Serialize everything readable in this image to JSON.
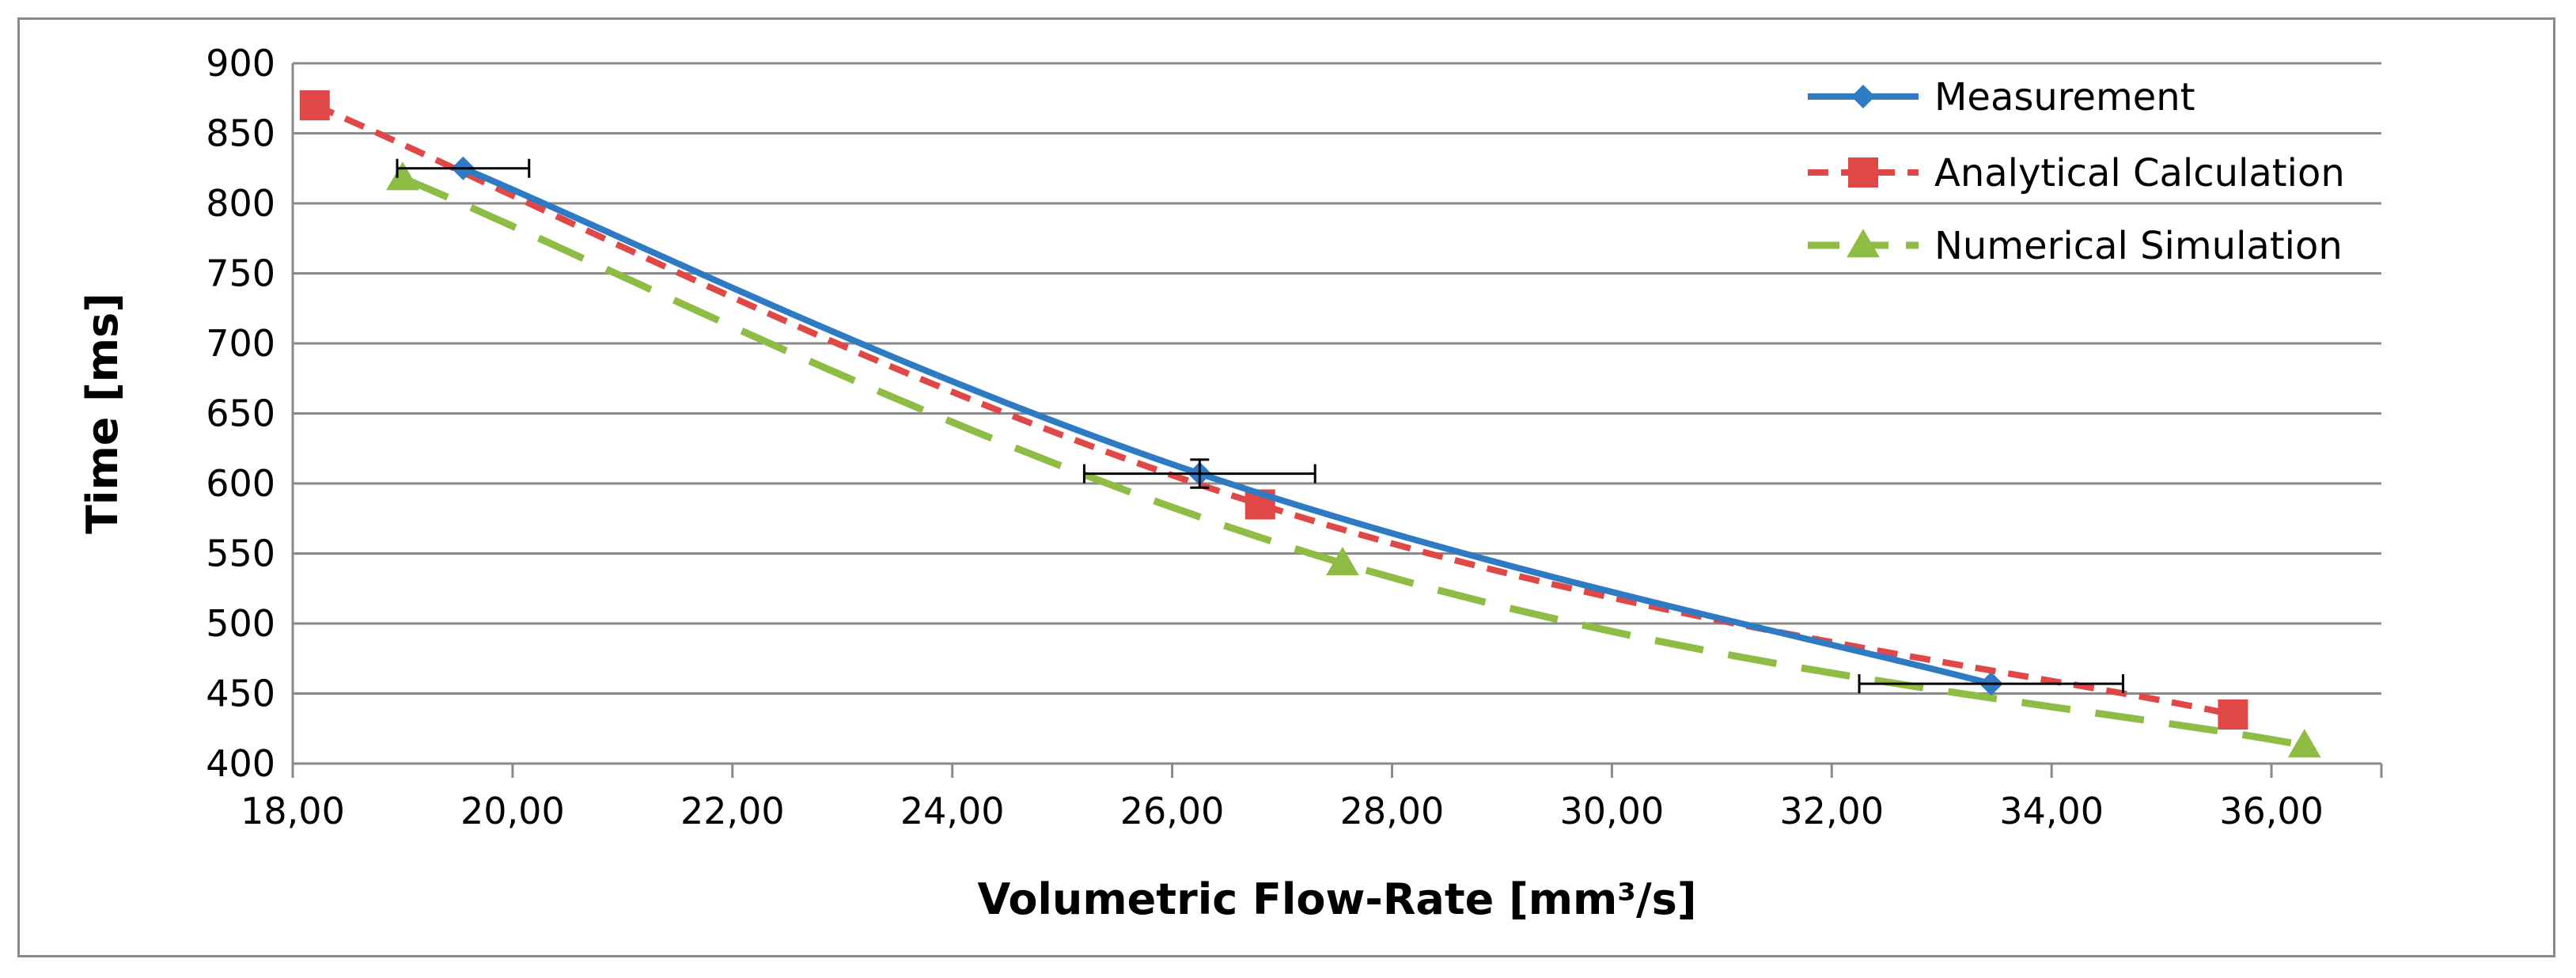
{
  "chart_data": {
    "type": "line",
    "xlabel": "Volumetric Flow-Rate [mm³/s]",
    "ylabel": "Time [ms]",
    "xlim": [
      18,
      37
    ],
    "ylim": [
      400,
      900
    ],
    "x_ticks": [
      "18,00",
      "20,00",
      "22,00",
      "24,00",
      "26,00",
      "28,00",
      "30,00",
      "32,00",
      "34,00",
      "36,00"
    ],
    "x_tick_values": [
      18,
      20,
      22,
      24,
      26,
      28,
      30,
      32,
      34,
      36
    ],
    "y_ticks": [
      "400",
      "450",
      "500",
      "550",
      "600",
      "650",
      "700",
      "750",
      "800",
      "850",
      "900"
    ],
    "y_tick_values": [
      400,
      450,
      500,
      550,
      600,
      650,
      700,
      750,
      800,
      850,
      900
    ],
    "grid": "horizontal",
    "legend_position": "top-right",
    "series": [
      {
        "name": "Measurement",
        "color": "#2E7BC4",
        "marker": "diamond",
        "dash": "solid",
        "x": [
          19.55,
          26.25,
          33.45
        ],
        "y": [
          825,
          607,
          457
        ],
        "xerr": [
          0.6,
          1.05,
          1.2
        ],
        "yerr": [
          0,
          10,
          0
        ]
      },
      {
        "name": "Analytical Calculation",
        "color": "#E04848",
        "marker": "square",
        "dash": "short",
        "x": [
          18.2,
          26.8,
          35.65
        ],
        "y": [
          870,
          585,
          435
        ]
      },
      {
        "name": "Numerical Simulation",
        "color": "#8FBC45",
        "marker": "triangle",
        "dash": "long",
        "x": [
          19.0,
          27.55,
          36.3
        ],
        "y": [
          818,
          543,
          413
        ]
      }
    ]
  }
}
